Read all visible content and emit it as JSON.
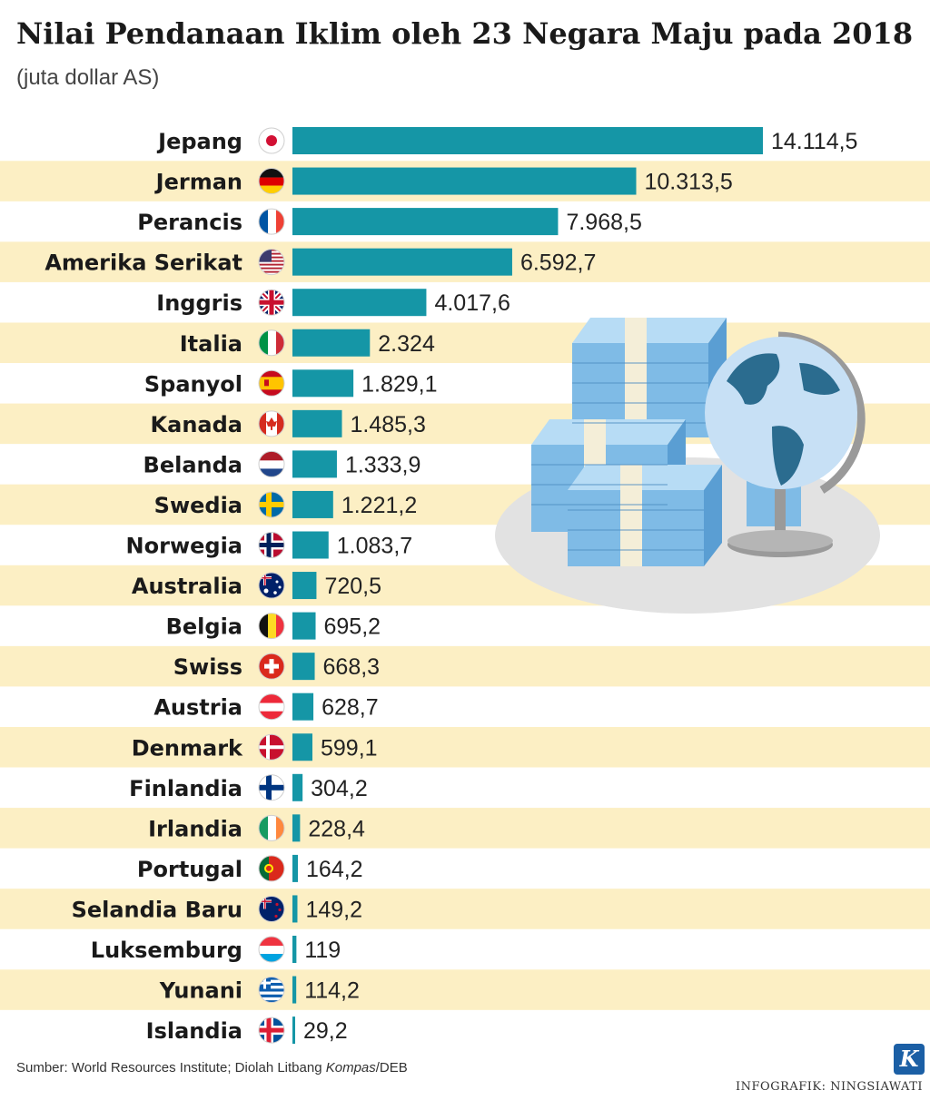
{
  "title": "Nilai Pendanaan Iklim oleh 23 Negara Maju pada 2018",
  "subtitle": "(juta dollar AS)",
  "source": {
    "prefix": "Sumber: World Resources Institute; Diolah Litbang ",
    "italic": "Kompas",
    "suffix": "/DEB"
  },
  "credit": "INFOGRAFIK: NINGSIAWATI",
  "logo_letter": "K",
  "colors": {
    "bar": "#1596a6",
    "stripe": "#fcefc4",
    "label": "#1a1a1a",
    "value": "#222222"
  },
  "chart_data": {
    "type": "bar",
    "orientation": "horizontal",
    "categories": [
      "Jepang",
      "Jerman",
      "Perancis",
      "Amerika Serikat",
      "Inggris",
      "Italia",
      "Spanyol",
      "Kanada",
      "Belanda",
      "Swedia",
      "Norwegia",
      "Australia",
      "Belgia",
      "Swiss",
      "Austria",
      "Denmark",
      "Finlandia",
      "Irlandia",
      "Portugal",
      "Selandia Baru",
      "Luksemburg",
      "Yunani",
      "Islandia"
    ],
    "values": [
      14114.5,
      10313.5,
      7968.5,
      6592.7,
      4017.6,
      2324,
      1829.1,
      1485.3,
      1333.9,
      1221.2,
      1083.7,
      720.5,
      695.2,
      668.3,
      628.7,
      599.1,
      304.2,
      228.4,
      164.2,
      149.2,
      119,
      114.2,
      29.2
    ],
    "value_labels": [
      "14.114,5",
      "10.313,5",
      "7.968,5",
      "6.592,7",
      "4.017,6",
      "2.324",
      "1.829,1",
      "1.485,3",
      "1.333,9",
      "1.221,2",
      "1.083,7",
      "720,5",
      "695,2",
      "668,3",
      "628,7",
      "599,1",
      "304,2",
      "228,4",
      "164,2",
      "149,2",
      "119",
      "114,2",
      "29,2"
    ],
    "flags": [
      "japan-flag-icon",
      "germany-flag-icon",
      "france-flag-icon",
      "usa-flag-icon",
      "uk-flag-icon",
      "italy-flag-icon",
      "spain-flag-icon",
      "canada-flag-icon",
      "netherlands-flag-icon",
      "sweden-flag-icon",
      "norway-flag-icon",
      "australia-flag-icon",
      "belgium-flag-icon",
      "switzerland-flag-icon",
      "austria-flag-icon",
      "denmark-flag-icon",
      "finland-flag-icon",
      "ireland-flag-icon",
      "portugal-flag-icon",
      "new-zealand-flag-icon",
      "luxembourg-flag-icon",
      "greece-flag-icon",
      "iceland-flag-icon"
    ],
    "xlim": [
      0,
      14114.5
    ],
    "grid": false,
    "legend": "none",
    "striped_rows": true
  }
}
